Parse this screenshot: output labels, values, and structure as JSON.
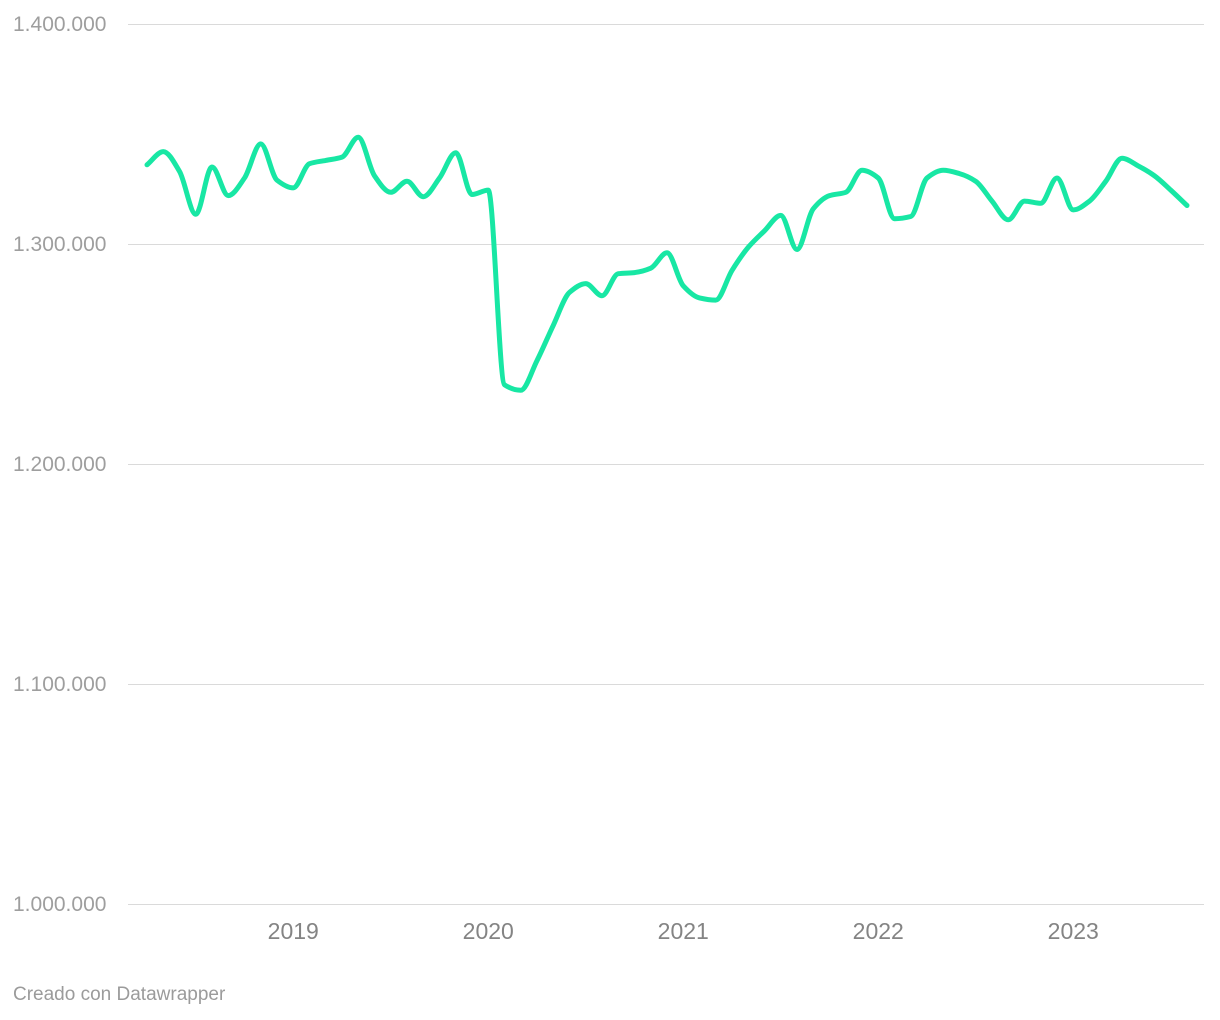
{
  "chart_data": {
    "type": "line",
    "x": [
      "2018-04",
      "2018-05",
      "2018-06",
      "2018-07",
      "2018-08",
      "2018-09",
      "2018-10",
      "2018-11",
      "2018-12",
      "2019-01",
      "2019-02",
      "2019-03",
      "2019-04",
      "2019-05",
      "2019-06",
      "2019-07",
      "2019-08",
      "2019-09",
      "2019-10",
      "2019-11",
      "2019-12",
      "2020-01",
      "2020-02",
      "2020-03",
      "2020-04",
      "2020-05",
      "2020-06",
      "2020-07",
      "2020-08",
      "2020-09",
      "2020-10",
      "2020-11",
      "2020-12",
      "2021-01",
      "2021-02",
      "2021-03",
      "2021-04",
      "2021-05",
      "2021-06",
      "2021-07",
      "2021-08",
      "2021-09",
      "2021-10",
      "2021-11",
      "2021-12",
      "2022-01",
      "2022-02",
      "2022-03",
      "2022-04",
      "2022-05",
      "2022-06",
      "2022-07",
      "2022-08",
      "2022-09",
      "2022-10",
      "2022-11",
      "2022-12",
      "2023-01",
      "2023-02",
      "2023-03",
      "2023-04",
      "2023-05",
      "2023-06",
      "2023-07",
      "2023-08"
    ],
    "series": [
      {
        "name": "serie",
        "values": [
          1336000,
          1342000,
          1333000,
          1313500,
          1335000,
          1322000,
          1330000,
          1345500,
          1329000,
          1325500,
          1336500,
          1338000,
          1339500,
          1348500,
          1331000,
          1323500,
          1328500,
          1321500,
          1330000,
          1341500,
          1322500,
          1324500,
          1236000,
          1233500,
          1247000,
          1263000,
          1278000,
          1282000,
          1276500,
          1286500,
          1287000,
          1289000,
          1296000,
          1281000,
          1275500,
          1274500,
          1288000,
          1298500,
          1306000,
          1313000,
          1297500,
          1316000,
          1322000,
          1323500,
          1333500,
          1330000,
          1311500,
          1312500,
          1330000,
          1333500,
          1332000,
          1328500,
          1319500,
          1311000,
          1319500,
          1318500,
          1330000,
          1315500,
          1319500,
          1328500,
          1339000,
          1335500,
          1331000,
          1324500,
          1317500
        ]
      }
    ],
    "y_ticks": [
      {
        "value": 1400000,
        "label": "1.400.000"
      },
      {
        "value": 1300000,
        "label": "1.300.000"
      },
      {
        "value": 1200000,
        "label": "1.200.000"
      },
      {
        "value": 1100000,
        "label": "1.100.000"
      },
      {
        "value": 1000000,
        "label": "1.000.000"
      }
    ],
    "x_tick_years": [
      "2019",
      "2020",
      "2021",
      "2022",
      "2023"
    ],
    "ylim": [
      1000000,
      1400000
    ],
    "grid": true,
    "legend": "none",
    "line_color": "#18e7a4",
    "grid_color": "#dadada"
  },
  "footer": {
    "text": "Creado con Datawrapper"
  }
}
